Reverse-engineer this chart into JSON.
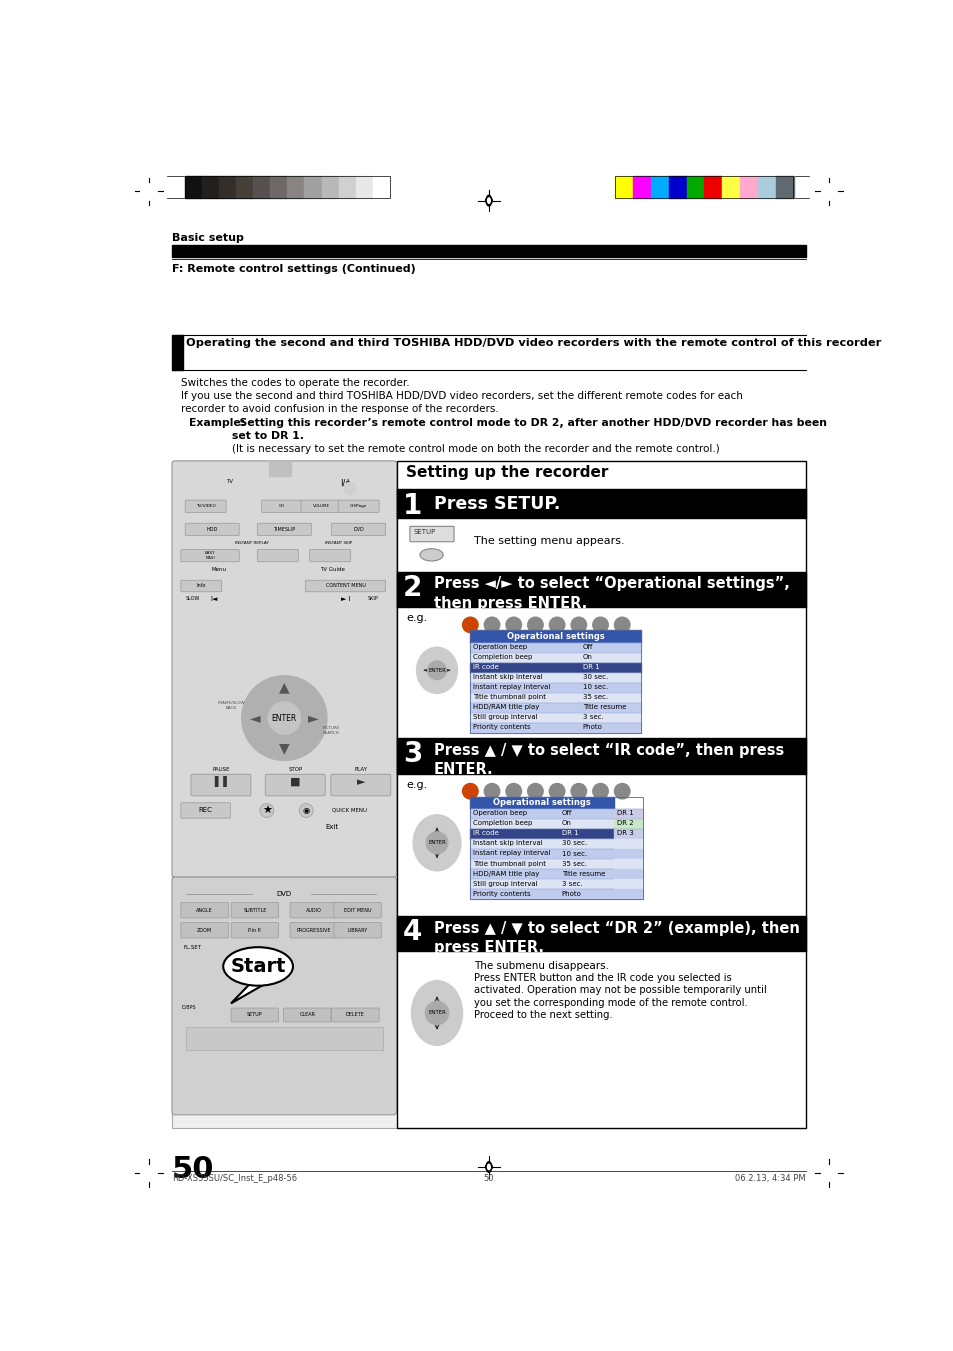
{
  "bg_color": "#ffffff",
  "page_width": 9.54,
  "page_height": 13.51,
  "dpi": 100,
  "header_bar_colors_left": [
    "#111111",
    "#231f1c",
    "#332e2a",
    "#454038",
    "#585050",
    "#6e6868",
    "#888484",
    "#a0a0a0",
    "#b8b8b8",
    "#d0d0d0",
    "#e8e8e8",
    "#ffffff"
  ],
  "header_bar_colors_right": [
    "#ffff00",
    "#ff00ff",
    "#00aaff",
    "#0000cc",
    "#00aa00",
    "#ee0000",
    "#ffff44",
    "#ffaacc",
    "#aaccdd",
    "#606870"
  ],
  "section_title": "Basic setup",
  "section_subtitle": "F: Remote control settings (Continued)",
  "main_heading": "Operating the second and third TOSHIBA HDD/DVD video recorders with the remote control of this recorder",
  "intro_line1": "Switches the codes to operate the recorder.",
  "intro_line2": "If you use the second and third TOSHIBA HDD/DVD video recorders, set the different remote codes for each",
  "intro_line3": "recorder to avoid confusion in the response of the recorders.",
  "example_label": "Example:",
  "example_text1": "  Setting this recorder’s remote control mode to DR 2, after another HDD/DVD recorder has been",
  "example_text2": "set to DR 1.",
  "example_paren": "(It is necessary to set the remote control mode on both the recorder and the remote control.)",
  "box_title": "Setting up the recorder",
  "step1_num": "1",
  "step1_text": "Press SETUP.",
  "step1_sub": "The setting menu appears.",
  "step2_num": "2",
  "step2_text": "Press ◄/► to select “Operational settings”,\nthen press ENTER.",
  "step2_eg": "e.g.",
  "step3_num": "3",
  "step3_text": "Press ▲ / ▼ to select “IR code”, then press\nENTER.",
  "step3_eg": "e.g.",
  "step4_num": "4",
  "step4_text": "Press ▲ / ▼ to select “DR 2” (example), then\npress ENTER.",
  "step4_sub1": "The submenu disappears.",
  "step4_sub2": "Press ENTER button and the IR code you selected is",
  "step4_sub3": "activated. Operation may not be possible temporarily until",
  "step4_sub4": "you set the corresponding mode of the remote control.",
  "step4_sub5": "Proceed to the next setting.",
  "op_settings_title": "Operational settings",
  "op_settings_rows": [
    [
      "Operation beep",
      "Off"
    ],
    [
      "Completion beep",
      "On"
    ],
    [
      "IR code",
      "DR 1"
    ],
    [
      "Instant skip interval",
      "30 sec."
    ],
    [
      "Instant replay interval",
      "10 sec."
    ],
    [
      "Title thumbnail point",
      "35 sec."
    ],
    [
      "HDD/RAM title play",
      "Title resume"
    ],
    [
      "Still group interval",
      "3 sec."
    ],
    [
      "Priority contents",
      "Photo"
    ]
  ],
  "op_settings_rows2": [
    [
      "Operation beep",
      "Off",
      "DR 1"
    ],
    [
      "Completion beep",
      "On",
      "DR 2"
    ],
    [
      "IR code",
      "DR 1",
      "DR 3"
    ],
    [
      "Instant skip interval",
      "30 sec.",
      ""
    ],
    [
      "Instant replay interval",
      "10 sec.",
      ""
    ],
    [
      "Title thumbnail point",
      "35 sec.",
      ""
    ],
    [
      "HDD/RAM title play",
      "Title resume",
      ""
    ],
    [
      "Still group interval",
      "3 sec.",
      ""
    ],
    [
      "Priority contents",
      "Photo",
      ""
    ]
  ],
  "page_num": "50",
  "footer_left": "RD-XS35SU/SC_Inst_E_p48-56",
  "footer_center": "50",
  "footer_right": "06.2.13, 4:34 PM",
  "start_bubble": "Start"
}
